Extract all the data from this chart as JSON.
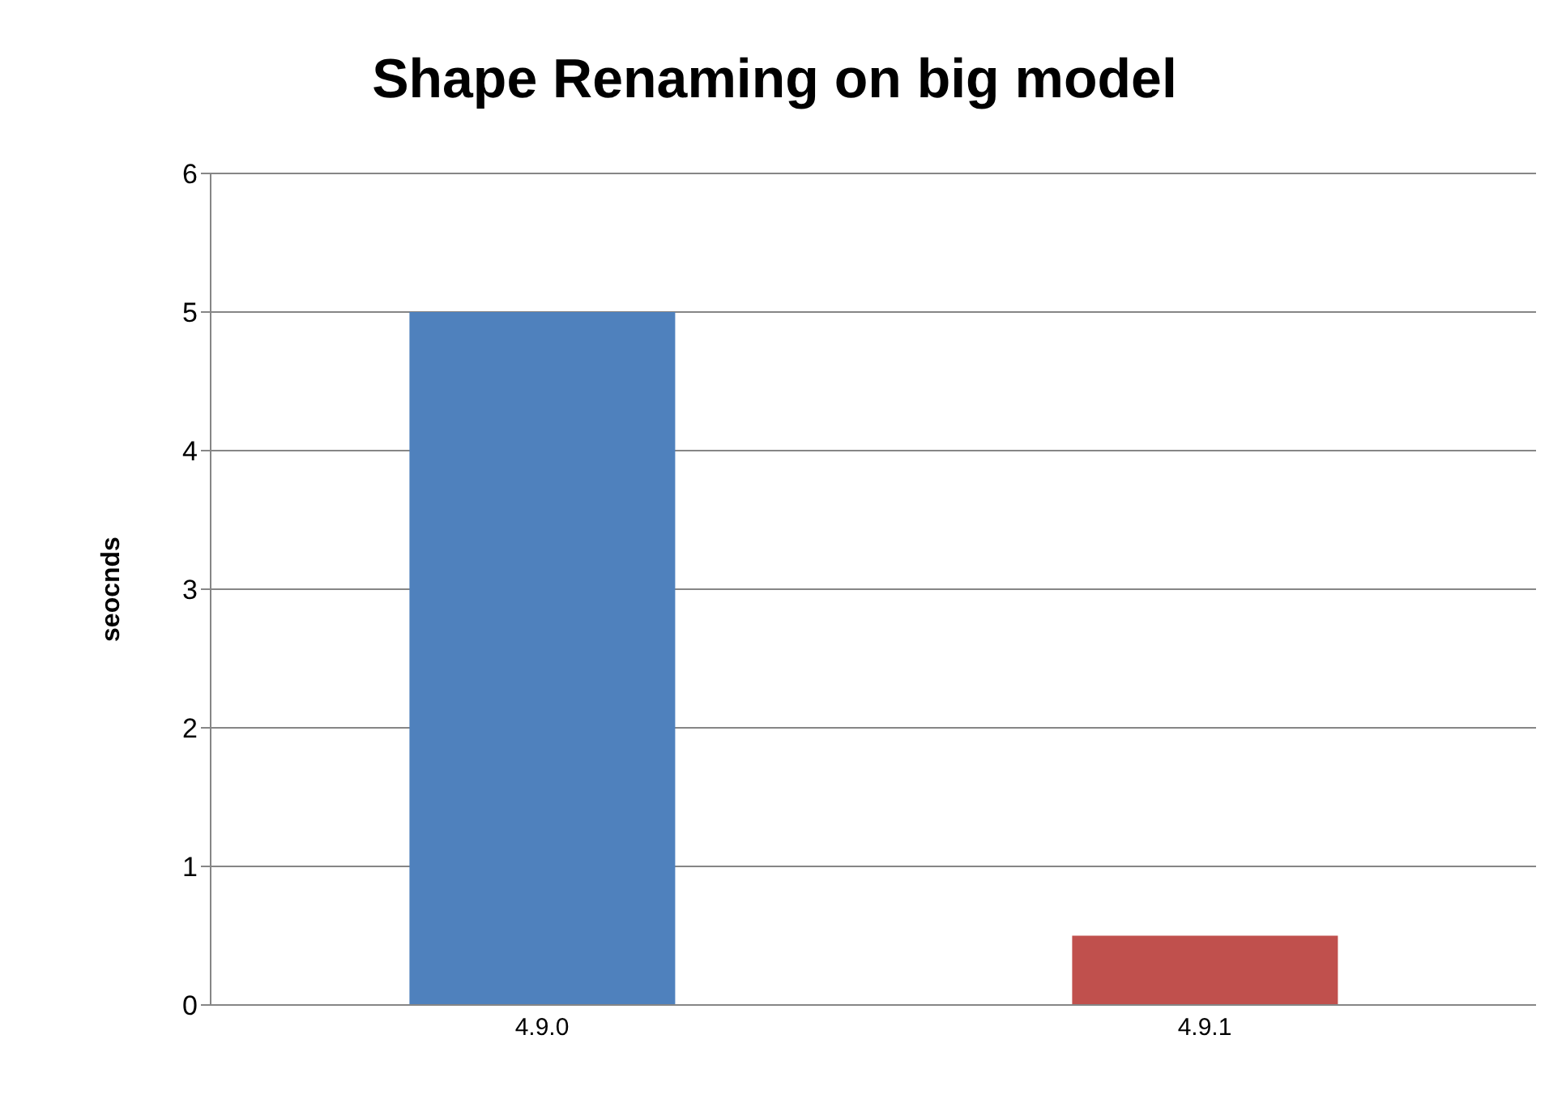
{
  "chart_data": {
    "type": "bar",
    "title": "Shape Renaming on big model",
    "ylabel": "seocnds",
    "categories": [
      "4.9.0",
      "4.9.1"
    ],
    "values": [
      5,
      0.5
    ],
    "colors": [
      "#4f81bd",
      "#c0504d"
    ],
    "ylim": [
      0,
      6
    ],
    "yticks": [
      0,
      1,
      2,
      3,
      4,
      5,
      6
    ],
    "grid": "y"
  }
}
